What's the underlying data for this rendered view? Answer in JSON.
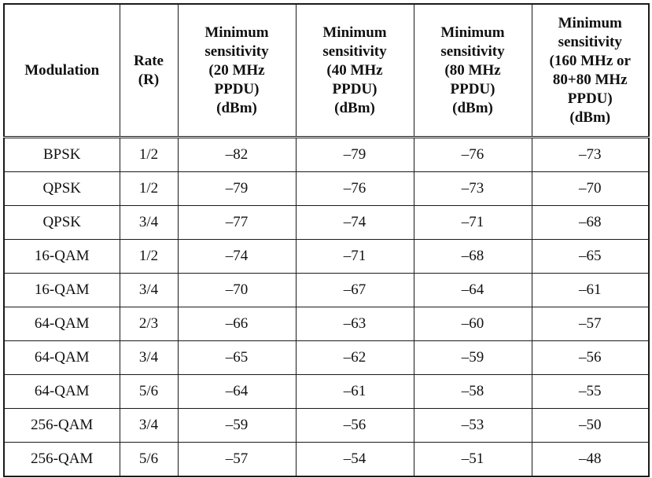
{
  "table": {
    "headers": [
      {
        "lines": [
          "Modulation"
        ]
      },
      {
        "lines": [
          "Rate",
          "(R)"
        ]
      },
      {
        "lines": [
          "Minimum",
          "sensitivity",
          "(20 MHz",
          "PPDU)",
          "(dBm)"
        ]
      },
      {
        "lines": [
          "Minimum",
          "sensitivity",
          "(40 MHz",
          "PPDU)",
          "(dBm)"
        ]
      },
      {
        "lines": [
          "Minimum",
          "sensitivity",
          "(80 MHz",
          "PPDU)",
          "(dBm)"
        ]
      },
      {
        "lines": [
          "Minimum",
          "sensitivity",
          "(160 MHz or",
          "80+80 MHz",
          "PPDU)",
          "(dBm)"
        ]
      }
    ],
    "rows": [
      [
        "BPSK",
        "1/2",
        "–82",
        "–79",
        "–76",
        "–73"
      ],
      [
        "QPSK",
        "1/2",
        "–79",
        "–76",
        "–73",
        "–70"
      ],
      [
        "QPSK",
        "3/4",
        "–77",
        "–74",
        "–71",
        "–68"
      ],
      [
        "16-QAM",
        "1/2",
        "–74",
        "–71",
        "–68",
        "–65"
      ],
      [
        "16-QAM",
        "3/4",
        "–70",
        "–67",
        "–64",
        "–61"
      ],
      [
        "64-QAM",
        "2/3",
        "–66",
        "–63",
        "–60",
        "–57"
      ],
      [
        "64-QAM",
        "3/4",
        "–65",
        "–62",
        "–59",
        "–56"
      ],
      [
        "64-QAM",
        "5/6",
        "–64",
        "–61",
        "–58",
        "–55"
      ],
      [
        "256-QAM",
        "3/4",
        "–59",
        "–56",
        "–53",
        "–50"
      ],
      [
        "256-QAM",
        "5/6",
        "–57",
        "–54",
        "–51",
        "–48"
      ]
    ]
  }
}
